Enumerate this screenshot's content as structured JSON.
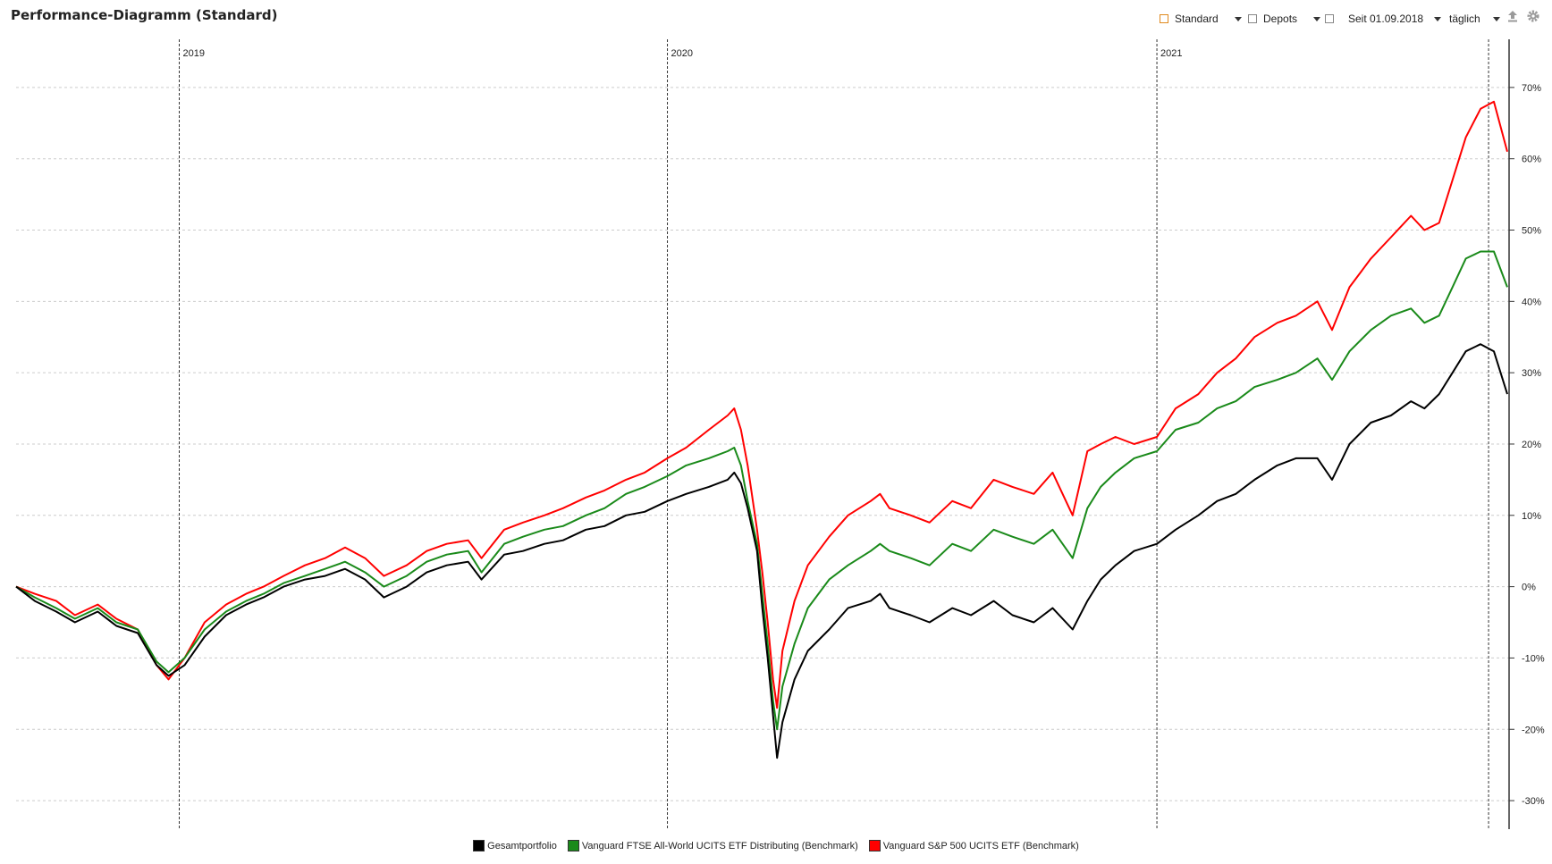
{
  "window": {
    "title": "Performance-Diagramm (Standard)"
  },
  "toolbar": {
    "view_label": "Standard",
    "depots_label": "Depots",
    "period_label": "Seit 01.09.2018",
    "interval_label": "täglich",
    "export_icon": "upload-icon",
    "settings_icon": "gear-icon"
  },
  "colors": {
    "portfolio": "#000000",
    "ftse": "#1a8a1a",
    "sp500": "#ff0000",
    "grid": "#cccccc",
    "year_line": "#333333"
  },
  "chart_data": {
    "type": "line",
    "x_unit": "date",
    "xlim": [
      "2018-09-01",
      "2021-09-20"
    ],
    "ylim": [
      -34,
      77
    ],
    "y_ticks": [
      70,
      60,
      50,
      40,
      30,
      20,
      10,
      0,
      -10,
      -20,
      -30
    ],
    "y_tick_labels": [
      "70%",
      "60%",
      "50%",
      "40%",
      "30%",
      "20%",
      "10%",
      "0%",
      "-10%",
      "-20%",
      "-30%"
    ],
    "year_markers": [
      {
        "date": "2019-01-01",
        "label": "2019"
      },
      {
        "date": "2020-01-01",
        "label": "2020"
      },
      {
        "date": "2021-01-01",
        "label": "2021"
      }
    ],
    "current_marker_date": "2021-09-06",
    "grid": true,
    "legend_position": "bottom",
    "x": [
      "2018-09-01",
      "2018-09-15",
      "2018-10-01",
      "2018-10-15",
      "2018-11-01",
      "2018-11-15",
      "2018-12-01",
      "2018-12-15",
      "2018-12-24",
      "2019-01-05",
      "2019-01-20",
      "2019-02-05",
      "2019-02-20",
      "2019-03-05",
      "2019-03-20",
      "2019-04-05",
      "2019-04-20",
      "2019-05-05",
      "2019-05-20",
      "2019-06-03",
      "2019-06-20",
      "2019-07-05",
      "2019-07-20",
      "2019-08-05",
      "2019-08-15",
      "2019-09-01",
      "2019-09-15",
      "2019-10-01",
      "2019-10-15",
      "2019-11-01",
      "2019-11-15",
      "2019-12-01",
      "2019-12-15",
      "2020-01-01",
      "2020-01-15",
      "2020-02-01",
      "2020-02-15",
      "2020-02-20",
      "2020-02-25",
      "2020-03-01",
      "2020-03-08",
      "2020-03-12",
      "2020-03-16",
      "2020-03-20",
      "2020-03-23",
      "2020-03-27",
      "2020-04-05",
      "2020-04-15",
      "2020-05-01",
      "2020-05-15",
      "2020-06-01",
      "2020-06-08",
      "2020-06-15",
      "2020-07-01",
      "2020-07-15",
      "2020-08-01",
      "2020-08-15",
      "2020-09-01",
      "2020-09-15",
      "2020-10-01",
      "2020-10-15",
      "2020-10-30",
      "2020-11-10",
      "2020-11-20",
      "2020-12-01",
      "2020-12-15",
      "2021-01-01",
      "2021-01-15",
      "2021-02-01",
      "2021-02-15",
      "2021-03-01",
      "2021-03-15",
      "2021-04-01",
      "2021-04-15",
      "2021-05-01",
      "2021-05-12",
      "2021-05-25",
      "2021-06-10",
      "2021-06-25",
      "2021-07-10",
      "2021-07-20",
      "2021-07-31",
      "2021-08-10",
      "2021-08-20",
      "2021-08-31",
      "2021-09-10",
      "2021-09-20"
    ],
    "series": [
      {
        "name": "Gesamtportfolio",
        "color": "#000000",
        "values": [
          0,
          -2,
          -3.5,
          -5,
          -3.5,
          -5.5,
          -6.5,
          -11,
          -12.5,
          -11,
          -7,
          -4,
          -2.5,
          -1.5,
          0,
          1,
          1.5,
          2.5,
          1,
          -1.5,
          0,
          2,
          3,
          3.5,
          1,
          4.5,
          5,
          6,
          6.5,
          8,
          8.5,
          10,
          10.5,
          12,
          13,
          14,
          15,
          16,
          14.5,
          11,
          5,
          -3,
          -10,
          -18,
          -24,
          -19,
          -13,
          -9,
          -6,
          -3,
          -2,
          -1,
          -3,
          -4,
          -5,
          -3,
          -4,
          -2,
          -4,
          -5,
          -3,
          -6,
          -2,
          1,
          3,
          5,
          6,
          8,
          10,
          12,
          13,
          15,
          17,
          18,
          18,
          15,
          20,
          23,
          24,
          26,
          25,
          27,
          30,
          33,
          34,
          33,
          27
        ]
      },
      {
        "name": "Vanguard FTSE All-World UCITS ETF Distributing (Benchmark)",
        "color": "#1a8a1a",
        "values": [
          0,
          -1.5,
          -3,
          -4.5,
          -3,
          -5,
          -6,
          -10.5,
          -12,
          -10,
          -6,
          -3.5,
          -2,
          -1,
          0.5,
          1.5,
          2.5,
          3.5,
          2,
          0,
          1.5,
          3.5,
          4.5,
          5,
          2,
          6,
          7,
          8,
          8.5,
          10,
          11,
          13,
          14,
          15.5,
          17,
          18,
          19,
          19.5,
          17,
          12,
          6,
          -1,
          -8,
          -16,
          -20,
          -14,
          -8,
          -3,
          1,
          3,
          5,
          6,
          5,
          4,
          3,
          6,
          5,
          8,
          7,
          6,
          8,
          4,
          11,
          14,
          16,
          18,
          19,
          22,
          23,
          25,
          26,
          28,
          29,
          30,
          32,
          29,
          33,
          36,
          38,
          39,
          37,
          38,
          42,
          46,
          47,
          47,
          42
        ]
      },
      {
        "name": "Vanguard S&P 500 UCITS ETF (Benchmark)",
        "color": "#ff0000",
        "values": [
          0,
          -1,
          -2,
          -4,
          -2.5,
          -4.5,
          -6,
          -11,
          -13,
          -10,
          -5,
          -2.5,
          -1,
          0,
          1.5,
          3,
          4,
          5.5,
          4,
          1.5,
          3,
          5,
          6,
          6.5,
          4,
          8,
          9,
          10,
          11,
          12.5,
          13.5,
          15,
          16,
          18,
          19.5,
          22,
          24,
          25,
          22,
          17,
          8,
          2,
          -5,
          -13,
          -17,
          -9,
          -2,
          3,
          7,
          10,
          12,
          13,
          11,
          10,
          9,
          12,
          11,
          15,
          14,
          13,
          16,
          10,
          19,
          20,
          21,
          20,
          21,
          25,
          27,
          30,
          32,
          35,
          37,
          38,
          40,
          36,
          42,
          46,
          49,
          52,
          50,
          51,
          57,
          63,
          67,
          68,
          61
        ]
      }
    ]
  }
}
